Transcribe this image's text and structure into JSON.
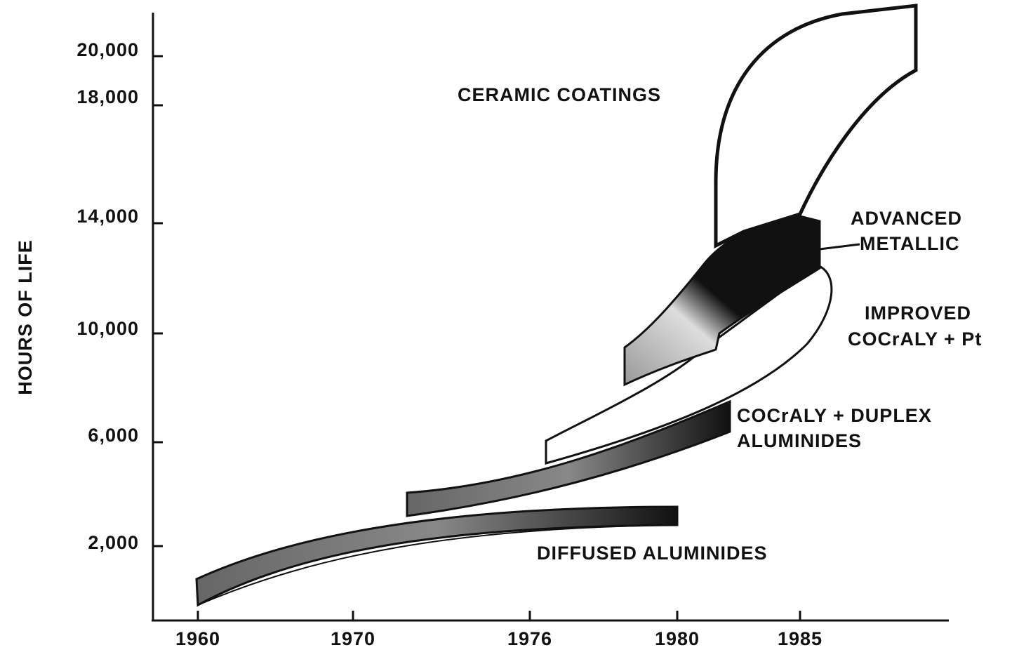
{
  "y_axis": {
    "label": "HOURS OF LIFE",
    "ticks": [
      "20,000",
      "18,000",
      "14,000",
      "10,000",
      "6,000",
      "2,000"
    ]
  },
  "x_axis": {
    "ticks": [
      "1960",
      "1970",
      "1976",
      "1980",
      "1985"
    ]
  },
  "bands": [
    {
      "label": [
        "CERAMIC COATINGS"
      ]
    },
    {
      "label": [
        "ADVANCED",
        "METALLIC"
      ]
    },
    {
      "label": [
        "IMPROVED",
        "COCrALY + Pt"
      ]
    },
    {
      "label": [
        "COCrALY + DUPLEX",
        "ALUMINIDES"
      ]
    },
    {
      "label": [
        "DIFFUSED ALUMINIDES"
      ]
    }
  ]
}
